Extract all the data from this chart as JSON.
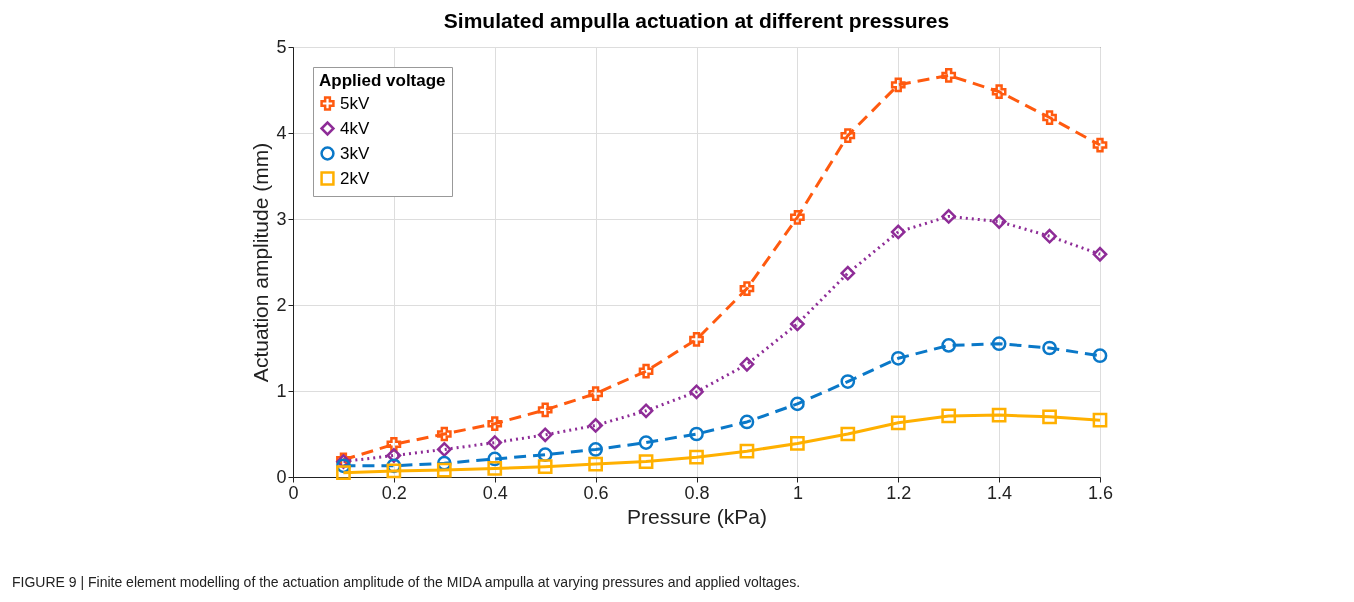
{
  "chart_data": {
    "type": "line",
    "title": "Simulated ampulla actuation at different pressures",
    "xlabel": "Pressure (kPa)",
    "ylabel": "Actuation amplitude (mm)",
    "legend_title": "Applied voltage",
    "x": [
      0.1,
      0.2,
      0.3,
      0.4,
      0.5,
      0.6,
      0.7,
      0.8,
      0.9,
      1.0,
      1.1,
      1.2,
      1.3,
      1.4,
      1.5,
      1.6
    ],
    "series": [
      {
        "name": "5kV",
        "color": "#ff5a0f",
        "marker": "cross",
        "line_style": "dashed",
        "values": [
          0.2,
          0.38,
          0.5,
          0.62,
          0.78,
          0.97,
          1.23,
          1.6,
          2.19,
          3.02,
          3.97,
          4.56,
          4.67,
          4.48,
          4.18,
          3.86
        ]
      },
      {
        "name": "4kV",
        "color": "#8e2c97",
        "marker": "diamond",
        "line_style": "dotted",
        "values": [
          0.18,
          0.25,
          0.32,
          0.4,
          0.49,
          0.6,
          0.77,
          0.99,
          1.31,
          1.78,
          2.37,
          2.85,
          3.03,
          2.97,
          2.8,
          2.59
        ]
      },
      {
        "name": "3kV",
        "color": "#0a78c8",
        "marker": "circle",
        "line_style": "dashed",
        "values": [
          0.13,
          0.13,
          0.16,
          0.21,
          0.26,
          0.32,
          0.4,
          0.5,
          0.64,
          0.85,
          1.11,
          1.38,
          1.53,
          1.55,
          1.5,
          1.41
        ]
      },
      {
        "name": "2kV",
        "color": "#ffb000",
        "marker": "square",
        "line_style": "solid",
        "values": [
          0.05,
          0.07,
          0.08,
          0.1,
          0.12,
          0.15,
          0.18,
          0.23,
          0.3,
          0.39,
          0.5,
          0.63,
          0.71,
          0.72,
          0.7,
          0.66
        ]
      }
    ],
    "xlim": [
      0,
      1.6
    ],
    "xticks": [
      0,
      0.2,
      0.4,
      0.6,
      0.8,
      1,
      1.2,
      1.4,
      1.6
    ],
    "ylim": [
      0,
      5
    ],
    "yticks": [
      0,
      1,
      2,
      3,
      4,
      5
    ],
    "grid": true,
    "legend": "top left",
    "annotations": [
      "FIGURE 9 | Finite element modelling of the actuation amplitude of the MIDA ampulla at varying pressures and applied voltages."
    ]
  }
}
